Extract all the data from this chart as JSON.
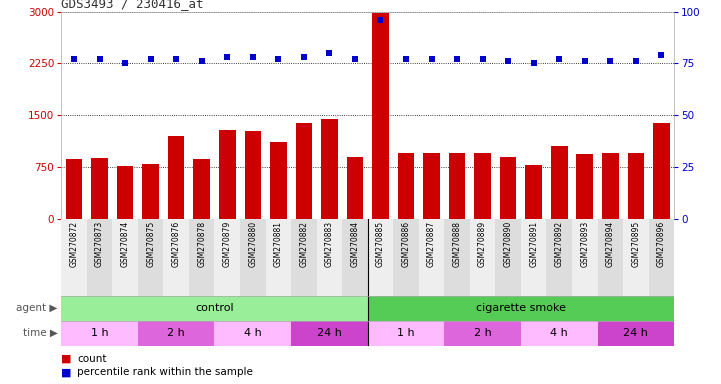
{
  "title": "GDS3493 / 230416_at",
  "samples": [
    "GSM270872",
    "GSM270873",
    "GSM270874",
    "GSM270875",
    "GSM270876",
    "GSM270878",
    "GSM270879",
    "GSM270880",
    "GSM270881",
    "GSM270882",
    "GSM270883",
    "GSM270884",
    "GSM270885",
    "GSM270886",
    "GSM270887",
    "GSM270888",
    "GSM270889",
    "GSM270890",
    "GSM270891",
    "GSM270892",
    "GSM270893",
    "GSM270894",
    "GSM270895",
    "GSM270896"
  ],
  "counts": [
    870,
    880,
    760,
    790,
    1200,
    870,
    1280,
    1270,
    1110,
    1380,
    1450,
    890,
    2980,
    950,
    950,
    950,
    950,
    900,
    780,
    1060,
    940,
    950,
    950,
    1380
  ],
  "percentiles": [
    77,
    77,
    75,
    77,
    77,
    76,
    78,
    78,
    77,
    78,
    80,
    77,
    96,
    77,
    77,
    77,
    77,
    76,
    75,
    77,
    76,
    76,
    76,
    79
  ],
  "ylim_left": [
    0,
    3000
  ],
  "ylim_right": [
    0,
    100
  ],
  "yticks_left": [
    0,
    750,
    1500,
    2250,
    3000
  ],
  "yticks_right": [
    0,
    25,
    50,
    75,
    100
  ],
  "bar_color": "#cc0000",
  "dot_color": "#0000cc",
  "agent_groups": [
    {
      "label": "control",
      "start": 0,
      "end": 12,
      "color": "#99ee99"
    },
    {
      "label": "cigarette smoke",
      "start": 12,
      "end": 24,
      "color": "#55cc55"
    }
  ],
  "time_groups": [
    {
      "label": "1 h",
      "start": 0,
      "end": 3,
      "color": "#ffbbff"
    },
    {
      "label": "2 h",
      "start": 3,
      "end": 6,
      "color": "#dd66dd"
    },
    {
      "label": "4 h",
      "start": 6,
      "end": 9,
      "color": "#ffbbff"
    },
    {
      "label": "24 h",
      "start": 9,
      "end": 12,
      "color": "#cc44cc"
    },
    {
      "label": "1 h",
      "start": 12,
      "end": 15,
      "color": "#ffbbff"
    },
    {
      "label": "2 h",
      "start": 15,
      "end": 18,
      "color": "#dd66dd"
    },
    {
      "label": "4 h",
      "start": 18,
      "end": 21,
      "color": "#ffbbff"
    },
    {
      "label": "24 h",
      "start": 21,
      "end": 24,
      "color": "#cc44cc"
    }
  ],
  "bg_color": "#ffffff",
  "plot_bg_color": "#ffffff"
}
